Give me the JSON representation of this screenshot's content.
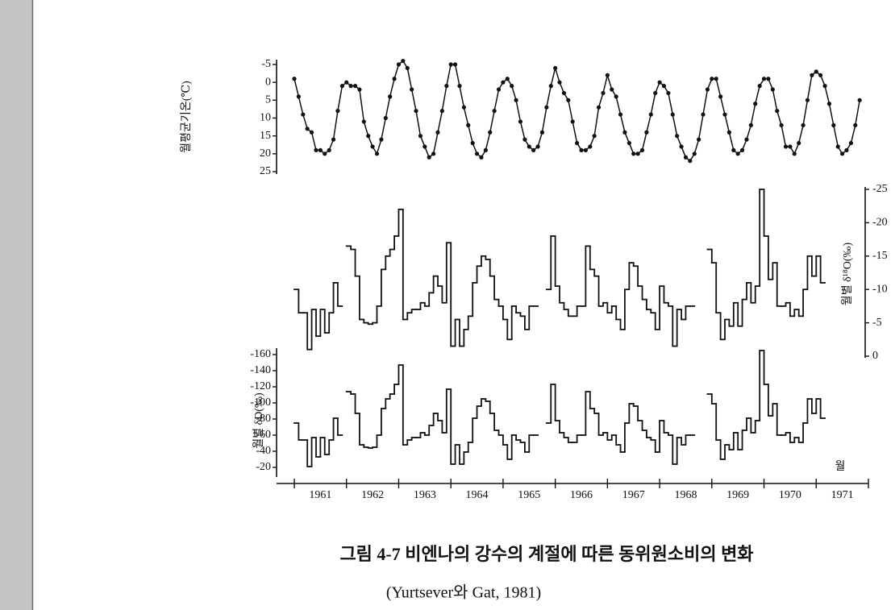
{
  "chart_data": {
    "type": "line",
    "ylabel": "월평균기온(℃)",
    "y2label": "월별 δ¹⁸O(‰)",
    "y3label": "월별 δD(‰)",
    "xlabel": "월",
    "caption": [
      "그림 4-7  비엔나의 강수의 계절에 따른 동위원소비의 변화",
      "(Yurtsever와 Gat, 1981)"
    ],
    "categories": [
      "1961",
      "1962",
      "1963",
      "1964",
      "1965",
      "1966",
      "1967",
      "1968",
      "1969",
      "1970",
      "1971"
    ],
    "xlim": [
      1960.66,
      1972.0
    ],
    "xticks": [
      1961,
      1962,
      1963,
      1964,
      1965,
      1966,
      1967,
      1968,
      1969,
      1970,
      1971,
      1972
    ],
    "ylim": [
      25,
      -5
    ],
    "yticks": [
      -5,
      0,
      5,
      10,
      15,
      20,
      25
    ],
    "y2lim": [
      0,
      -25
    ],
    "y2ticks": [
      -25,
      -20,
      -15,
      -10,
      -5,
      0
    ],
    "y3lim": [
      -10,
      -168
    ],
    "y3ticks": [
      -160,
      -140,
      -120,
      -100,
      -80,
      -60,
      -40,
      -20
    ],
    "x": [
      1961,
      1961.083,
      1961.167,
      1961.25,
      1961.333,
      1961.417,
      1961.5,
      1961.583,
      1961.667,
      1961.75,
      1961.833,
      1961.917,
      1962,
      1962.083,
      1962.167,
      1962.25,
      1962.333,
      1962.417,
      1962.5,
      1962.583,
      1962.667,
      1962.75,
      1962.833,
      1962.917,
      1963,
      1963.083,
      1963.167,
      1963.25,
      1963.333,
      1963.417,
      1963.5,
      1963.583,
      1963.667,
      1963.75,
      1963.833,
      1963.917,
      1964,
      1964.083,
      1964.167,
      1964.25,
      1964.333,
      1964.417,
      1964.5,
      1964.583,
      1964.667,
      1964.75,
      1964.833,
      1964.917,
      1965,
      1965.083,
      1965.167,
      1965.25,
      1965.333,
      1965.417,
      1965.5,
      1965.583,
      1965.667,
      1965.75,
      1965.833,
      1965.917,
      1966,
      1966.083,
      1966.167,
      1966.25,
      1966.333,
      1966.417,
      1966.5,
      1966.583,
      1966.667,
      1966.75,
      1966.833,
      1966.917,
      1967,
      1967.083,
      1967.167,
      1967.25,
      1967.333,
      1967.417,
      1967.5,
      1967.583,
      1967.667,
      1967.75,
      1967.833,
      1967.917,
      1968,
      1968.083,
      1968.167,
      1968.25,
      1968.333,
      1968.417,
      1968.5,
      1968.583,
      1968.667,
      1968.75,
      1968.833,
      1968.917,
      1969,
      1969.083,
      1969.167,
      1969.25,
      1969.333,
      1969.417,
      1969.5,
      1969.583,
      1969.667,
      1969.75,
      1969.833,
      1969.917,
      1970,
      1970.083,
      1970.167,
      1970.25,
      1970.333,
      1970.417,
      1970.5,
      1970.583,
      1970.667,
      1970.75,
      1970.833,
      1970.917,
      1971,
      1971.083,
      1971.167,
      1971.25,
      1971.333,
      1971.417,
      1971.5,
      1971.583,
      1971.667,
      1971.75,
      1971.833
    ],
    "series": [
      {
        "axis": "y",
        "type": "line",
        "color": "#111111",
        "values": [
          -1,
          4,
          9,
          13,
          14,
          19,
          19,
          20,
          19,
          16,
          8,
          1,
          0,
          1,
          1,
          2,
          11,
          15,
          18,
          20,
          16,
          10,
          4,
          -1,
          -5,
          -6,
          -4,
          2,
          8,
          15,
          18,
          21,
          20,
          14,
          8,
          1,
          -5,
          -5,
          1,
          7,
          12,
          17,
          20,
          21,
          19,
          14,
          8,
          2,
          0,
          -1,
          1,
          5,
          11,
          16,
          18,
          19,
          18,
          14,
          7,
          1,
          -4,
          0,
          3,
          5,
          11,
          17,
          19,
          19,
          18,
          15,
          7,
          3,
          -2,
          2,
          4,
          9,
          14,
          17,
          20,
          20,
          19,
          14,
          9,
          3,
          0,
          1,
          3,
          9,
          15,
          18,
          21,
          22,
          20,
          16,
          9,
          2,
          -1,
          -1,
          4,
          9,
          14,
          19,
          20,
          19,
          16,
          12,
          6,
          1,
          -1,
          -1,
          2,
          8,
          12,
          18,
          18,
          20,
          17,
          12,
          5,
          -2,
          -3,
          -2,
          1,
          6,
          12,
          18,
          20,
          19,
          17,
          12,
          5
        ]
      },
      {
        "axis": "y2",
        "type": "step",
        "color": "#111111",
        "values": [
          -10,
          -6.5,
          -6.5,
          -1,
          -7,
          -3,
          -7,
          -3.5,
          -6.5,
          -11,
          -7.5,
          null,
          -16.5,
          -16,
          -12,
          -5.5,
          -5,
          -4.8,
          -5,
          -7.5,
          -13,
          -15,
          -16,
          -18,
          -22,
          -5.5,
          -6.5,
          -7,
          -7,
          -8,
          -7.5,
          -9.5,
          -12,
          -10.5,
          -8,
          -17,
          -1.5,
          -5.5,
          -1.5,
          -4,
          -6,
          -11,
          -13.5,
          -15,
          -14.5,
          -12,
          -8.5,
          -7.5,
          -5.5,
          -2.5,
          -7.5,
          -6.5,
          -6,
          -4,
          -7.5,
          -7.5,
          null,
          null,
          -10,
          -18,
          -10.5,
          -8,
          -7,
          -6,
          -6,
          -7.5,
          -7.5,
          -16.5,
          -13,
          -12,
          -7.5,
          -8,
          -6.5,
          -7.5,
          -5.5,
          -4,
          -10,
          -14,
          -13.5,
          -10.5,
          -8.5,
          -7,
          -6.5,
          -4,
          -10.5,
          -8,
          -7.5,
          -1.5,
          -7,
          -5.5,
          -7.5,
          -7.5,
          null,
          null,
          null,
          -16,
          -14,
          -6.5,
          -2.5,
          -5.5,
          -4.5,
          -8,
          -4.5,
          -8.5,
          -11,
          -8,
          -10.5,
          -25,
          -18,
          -11.5,
          -14,
          -7.5,
          -7.5,
          -8,
          -6,
          -7,
          -6,
          -10,
          -15,
          -12,
          -15,
          -11,
          null,
          null,
          null,
          null,
          null,
          null,
          null,
          null,
          null
        ]
      },
      {
        "axis": "y3",
        "type": "step",
        "color": "#111111",
        "values": [
          -75,
          -54,
          -54,
          -21,
          -57,
          -33,
          -57,
          -36,
          -54,
          -81,
          -60,
          null,
          -114,
          -111,
          -87,
          -48,
          -45,
          -44,
          -45,
          -60,
          -93,
          -105,
          -111,
          -123,
          -147,
          -48,
          -54,
          -57,
          -57,
          -63,
          -60,
          -72,
          -87,
          -78,
          -63,
          -117,
          -24,
          -48,
          -24,
          -39,
          -51,
          -81,
          -96,
          -105,
          -102,
          -87,
          -66,
          -60,
          -48,
          -30,
          -60,
          -54,
          -51,
          -39,
          -60,
          -60,
          null,
          null,
          -75,
          -123,
          -78,
          -63,
          -57,
          -51,
          -51,
          -60,
          -60,
          -114,
          -93,
          -87,
          -60,
          -63,
          -54,
          -60,
          -48,
          -39,
          -75,
          -99,
          -96,
          -78,
          -66,
          -57,
          -54,
          -39,
          -78,
          -63,
          -60,
          -24,
          -57,
          -48,
          -60,
          -60,
          null,
          null,
          null,
          -111,
          -99,
          -54,
          -30,
          -48,
          -42,
          -63,
          -42,
          -66,
          -81,
          -63,
          -78,
          -165,
          -123,
          -84,
          -99,
          -60,
          -60,
          -63,
          -51,
          -57,
          -51,
          -75,
          -105,
          -87,
          -105,
          -81,
          null,
          null,
          null,
          null,
          null,
          null,
          null,
          null,
          null
        ]
      }
    ]
  }
}
